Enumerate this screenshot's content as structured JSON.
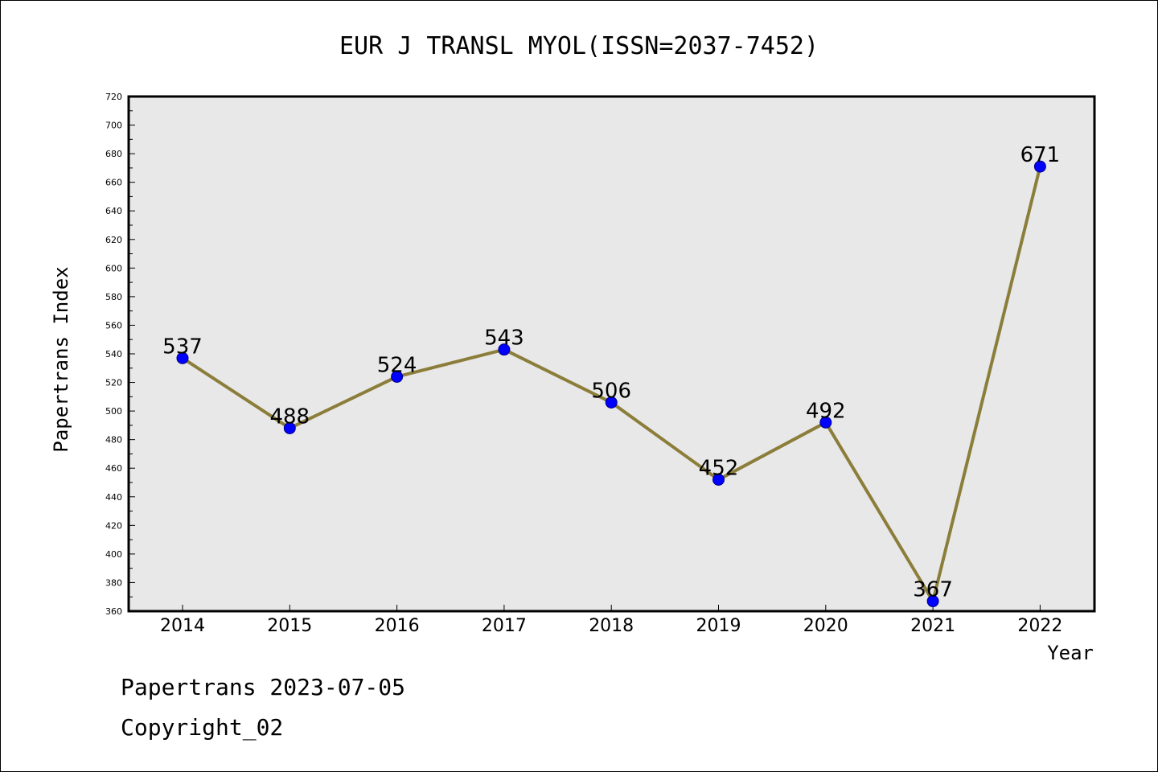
{
  "chart_data": {
    "type": "line",
    "title": "EUR J TRANSL MYOL(ISSN=2037-7452)",
    "xlabel": "Year",
    "ylabel": "Papertrans Index",
    "categories": [
      "2014",
      "2015",
      "2016",
      "2017",
      "2018",
      "2019",
      "2020",
      "2021",
      "2022"
    ],
    "series": [
      {
        "values": [
          537,
          488,
          524,
          543,
          506,
          452,
          492,
          367,
          671
        ]
      }
    ],
    "ylim": [
      360,
      720
    ],
    "yticks": [
      360,
      380,
      400,
      420,
      440,
      460,
      480,
      500,
      520,
      540,
      560,
      580,
      600,
      620,
      640,
      660,
      680,
      700,
      720
    ],
    "grid": false,
    "legend": "none",
    "colors": {
      "line": "#8B7D3A",
      "marker": "#0000FF",
      "plot_background": "#E8E8E8"
    }
  },
  "footer": {
    "source": "Papertrans 2023-07-05",
    "copyright": "Copyright_02"
  }
}
